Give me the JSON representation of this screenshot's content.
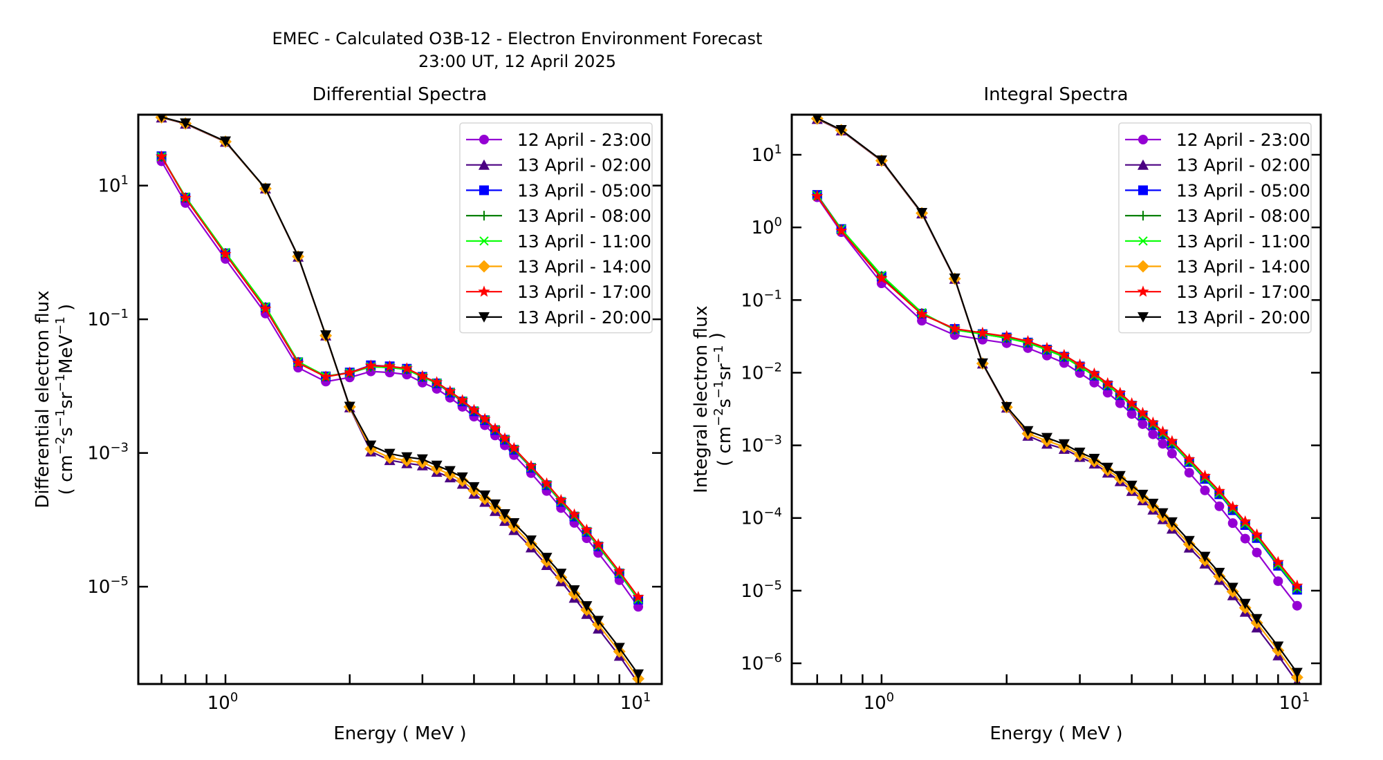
{
  "figure": {
    "title_line1": "EMEC - Calculated O3B-12 - Electron Environment Forecast",
    "title_line2": "23:00 UT, 12 April 2025"
  },
  "chart_data": [
    {
      "type": "line",
      "title": "Differential Spectra",
      "xlabel": "Energy ( MeV )",
      "ylabel_line1": "Differential electron flux",
      "ylabel_line2_parts": [
        "( cm",
        "−2",
        "s",
        "−1",
        "sr",
        "−1",
        "MeV",
        "−1",
        " )"
      ],
      "xscale": "log",
      "yscale": "log",
      "xlim": [
        0.615,
        11.4
      ],
      "ylim": [
        3.5e-07,
        115
      ],
      "xticks": [
        {
          "value": 1,
          "base": "10",
          "exp": "0"
        },
        {
          "value": 10,
          "base": "10",
          "exp": "1"
        }
      ],
      "yticks": [
        {
          "value": 10,
          "base": "10",
          "exp": "1"
        },
        {
          "value": 0.1,
          "base": "10",
          "exp": "−1"
        },
        {
          "value": 0.001,
          "base": "10",
          "exp": "−3"
        },
        {
          "value": 1e-05,
          "base": "10",
          "exp": "−5"
        }
      ],
      "legend_position": "upper-right",
      "grid": false,
      "x": [
        0.7,
        0.8,
        1.0,
        1.25,
        1.5,
        1.75,
        2.0,
        2.25,
        2.5,
        2.75,
        3.0,
        3.25,
        3.5,
        3.75,
        4.0,
        4.25,
        4.5,
        4.75,
        5.0,
        5.5,
        6.0,
        6.5,
        7.0,
        7.5,
        8.0,
        9.0,
        10.0
      ],
      "series": [
        {
          "name": "12 April - 23:00",
          "color": "#9400d3",
          "marker": "circle",
          "values": [
            23.1,
            5.5,
            0.8,
            0.122,
            0.0189,
            0.0117,
            0.0135,
            0.0166,
            0.016,
            0.0149,
            0.0113,
            0.0091,
            0.0067,
            0.0049,
            0.0035,
            0.0026,
            0.00183,
            0.0013,
            0.00093,
            0.0005,
            0.00027,
            0.00015,
            9e-05,
            5.3e-05,
            3.2e-05,
            1.25e-05,
            5e-06
          ]
        },
        {
          "name": "13 April - 02:00",
          "color": "#4b0082",
          "marker": "triangle-up",
          "values": [
            104,
            84,
            45,
            9.0,
            0.86,
            0.057,
            0.0048,
            0.00105,
            0.00078,
            0.0007,
            0.00065,
            0.00052,
            0.00043,
            0.000345,
            0.000245,
            0.000185,
            0.000135,
            9.6e-05,
            7e-05,
            3.85e-05,
            2.1e-05,
            1.2e-05,
            6.8e-06,
            3.9e-06,
            2.35e-06,
            9.2e-07,
            3.6e-07
          ]
        },
        {
          "name": "13 April - 05:00",
          "color": "#0000ff",
          "marker": "square",
          "values": [
            27.5,
            6.6,
            0.97,
            0.15,
            0.0228,
            0.014,
            0.016,
            0.0205,
            0.0198,
            0.0182,
            0.0138,
            0.011,
            0.008,
            0.0059,
            0.0042,
            0.0031,
            0.0022,
            0.00158,
            0.00112,
            0.0006,
            0.00033,
            0.000185,
            0.000112,
            6.6e-05,
            4e-05,
            1.58e-05,
            6.4e-06
          ]
        },
        {
          "name": "13 April - 08:00",
          "color": "#008000",
          "marker": "plus",
          "values": [
            27.0,
            6.6,
            0.98,
            0.152,
            0.023,
            0.014,
            0.0158,
            0.0195,
            0.019,
            0.0178,
            0.0137,
            0.0111,
            0.0081,
            0.006,
            0.0043,
            0.00315,
            0.00225,
            0.0016,
            0.00114,
            0.00061,
            0.000335,
            0.000188,
            0.000114,
            6.7e-05,
            4.05e-05,
            1.6e-05,
            6.5e-06
          ]
        },
        {
          "name": "13 April - 11:00",
          "color": "#00ff00",
          "marker": "x",
          "values": [
            27.0,
            6.8,
            1.0,
            0.155,
            0.0232,
            0.0141,
            0.0158,
            0.0195,
            0.019,
            0.0178,
            0.0137,
            0.0111,
            0.0081,
            0.006,
            0.0043,
            0.00315,
            0.00225,
            0.0016,
            0.00114,
            0.00061,
            0.000335,
            0.000188,
            0.000114,
            6.7e-05,
            4.05e-05,
            1.6e-05,
            6.5e-06
          ]
        },
        {
          "name": "13 April - 14:00",
          "color": "#ffa500",
          "marker": "diamond",
          "values": [
            105,
            85,
            45.5,
            9.0,
            0.87,
            0.057,
            0.0049,
            0.00115,
            0.00085,
            0.00077,
            0.00072,
            0.00058,
            0.00048,
            0.000385,
            0.000275,
            0.000207,
            0.000152,
            0.000108,
            7.9e-05,
            4.35e-05,
            2.4e-05,
            1.38e-05,
            7.8e-06,
            4.5e-06,
            2.72e-06,
            1.07e-06,
            4.2e-07
          ]
        },
        {
          "name": "13 April - 17:00",
          "color": "#ff0000",
          "marker": "star",
          "values": [
            27.2,
            6.5,
            0.94,
            0.143,
            0.0222,
            0.0138,
            0.0159,
            0.0202,
            0.0197,
            0.0184,
            0.0141,
            0.0114,
            0.00836,
            0.00614,
            0.00439,
            0.00322,
            0.00231,
            0.00165,
            0.00118,
            0.000635,
            0.00035,
            0.000197,
            0.00012,
            7.08e-05,
            4.29e-05,
            1.69e-05,
            7e-06
          ]
        },
        {
          "name": "13 April - 20:00",
          "color": "#000000",
          "marker": "triangle-down",
          "values": [
            106,
            85.7,
            46.0,
            9.1,
            0.877,
            0.0578,
            0.00494,
            0.0013,
            0.000977,
            0.000867,
            0.000807,
            0.00065,
            0.000538,
            0.000434,
            0.00031,
            0.000233,
            0.000171,
            0.000122,
            8.97e-05,
            4.94e-05,
            2.72e-05,
            1.57e-05,
            8.87e-06,
            5.13e-06,
            3.1e-06,
            1.22e-06,
            4.9e-07
          ]
        }
      ]
    },
    {
      "type": "line",
      "title": "Integral Spectra",
      "xlabel": "Energy ( MeV )",
      "ylabel_line1": "Integral electron flux",
      "ylabel_line2_parts": [
        "( cm",
        "−2",
        "s",
        "−1",
        "sr",
        "−1",
        "",
        "",
        " )"
      ],
      "xscale": "log",
      "yscale": "log",
      "xlim": [
        0.608,
        11.4
      ],
      "ylim": [
        5.19e-07,
        35.6
      ],
      "xticks": [
        {
          "value": 1,
          "base": "10",
          "exp": "0"
        },
        {
          "value": 10,
          "base": "10",
          "exp": "1"
        }
      ],
      "yticks": [
        {
          "value": 10,
          "base": "10",
          "exp": "1"
        },
        {
          "value": 1,
          "base": "10",
          "exp": "0"
        },
        {
          "value": 0.1,
          "base": "10",
          "exp": "−1"
        },
        {
          "value": 0.01,
          "base": "10",
          "exp": "−2"
        },
        {
          "value": 0.001,
          "base": "10",
          "exp": "−3"
        },
        {
          "value": 0.0001,
          "base": "10",
          "exp": "−4"
        },
        {
          "value": 1e-05,
          "base": "10",
          "exp": "−5"
        },
        {
          "value": 1e-06,
          "base": "10",
          "exp": "−6"
        }
      ],
      "legend_position": "upper-right",
      "grid": false,
      "x": [
        0.7,
        0.8,
        1.0,
        1.25,
        1.5,
        1.75,
        2.0,
        2.25,
        2.5,
        2.75,
        3.0,
        3.25,
        3.5,
        3.75,
        4.0,
        4.25,
        4.5,
        4.75,
        5.0,
        5.5,
        6.0,
        6.5,
        7.0,
        7.5,
        8.0,
        9.0,
        10.0
      ],
      "series": [
        {
          "name": "12 April - 23:00",
          "color": "#9400d3",
          "marker": "circle",
          "values": [
            2.6,
            0.86,
            0.17,
            0.052,
            0.033,
            0.0285,
            0.0255,
            0.0218,
            0.0172,
            0.0136,
            0.0099,
            0.0073,
            0.0053,
            0.0038,
            0.0027,
            0.00196,
            0.00142,
            0.00105,
            0.00077,
            0.00042,
            0.00024,
            0.000145,
            8.5e-05,
            5.2e-05,
            3.35e-05,
            1.35e-05,
            6.2e-06
          ]
        },
        {
          "name": "13 April - 02:00",
          "color": "#4b0082",
          "marker": "triangle-up",
          "values": [
            31,
            21.5,
            8.2,
            1.55,
            0.195,
            0.0133,
            0.0033,
            0.00135,
            0.00105,
            0.00089,
            0.00069,
            0.00056,
            0.00042,
            0.00032,
            0.000235,
            0.000175,
            0.00013,
            9.6e-05,
            7.1e-05,
            3.9e-05,
            2.35e-05,
            1.4e-05,
            8.6e-06,
            5.1e-06,
            3.1e-06,
            1.28e-06,
            5.5e-07
          ]
        },
        {
          "name": "13 April - 05:00",
          "color": "#0000ff",
          "marker": "square",
          "values": [
            2.8,
            0.95,
            0.21,
            0.065,
            0.04,
            0.034,
            0.0305,
            0.026,
            0.0208,
            0.0166,
            0.0122,
            0.0091,
            0.0067,
            0.0049,
            0.00352,
            0.00259,
            0.0019,
            0.00142,
            0.00105,
            0.00059,
            0.000345,
            0.000212,
            0.000128,
            8e-05,
            5.3e-05,
            2.2e-05,
            1.03e-05
          ]
        },
        {
          "name": "13 April - 08:00",
          "color": "#008000",
          "marker": "plus",
          "values": [
            2.75,
            0.94,
            0.215,
            0.066,
            0.039,
            0.034,
            0.03,
            0.0258,
            0.0206,
            0.0165,
            0.0121,
            0.0091,
            0.0067,
            0.0049,
            0.00355,
            0.00262,
            0.00193,
            0.00144,
            0.00107,
            0.0006,
            0.000355,
            0.000219,
            0.000133,
            8.35e-05,
            5.5e-05,
            2.3e-05,
            1.08e-05
          ]
        },
        {
          "name": "13 April - 11:00",
          "color": "#00ff00",
          "marker": "x",
          "values": [
            2.75,
            0.95,
            0.22,
            0.067,
            0.039,
            0.034,
            0.03,
            0.0258,
            0.0206,
            0.0165,
            0.0121,
            0.0091,
            0.0067,
            0.0049,
            0.00355,
            0.00262,
            0.00193,
            0.00144,
            0.00107,
            0.0006,
            0.000355,
            0.000219,
            0.000133,
            8.35e-05,
            5.5e-05,
            2.3e-05,
            1.08e-05
          ]
        },
        {
          "name": "13 April - 14:00",
          "color": "#ffa500",
          "marker": "diamond",
          "values": [
            31.5,
            21.8,
            8.3,
            1.57,
            0.197,
            0.0134,
            0.00335,
            0.00145,
            0.00115,
            0.00096,
            0.00074,
            0.000605,
            0.000455,
            0.00035,
            0.000255,
            0.00019,
            0.000143,
            0.000105,
            7.9e-05,
            4.35e-05,
            2.62e-05,
            1.57e-05,
            9.7e-06,
            5.8e-06,
            3.6e-06,
            1.5e-06,
            6.4e-07
          ]
        },
        {
          "name": "13 April - 17:00",
          "color": "#ff0000",
          "marker": "star",
          "values": [
            2.69,
            0.9,
            0.199,
            0.0637,
            0.0403,
            0.0353,
            0.0316,
            0.0271,
            0.0218,
            0.0175,
            0.0129,
            0.0097,
            0.00714,
            0.00526,
            0.00378,
            0.00279,
            0.00205,
            0.00154,
            0.00114,
            0.000643,
            0.00038,
            0.000235,
            0.000142,
            8.95e-05,
            5.91e-05,
            2.47e-05,
            1.17e-05
          ]
        },
        {
          "name": "13 April - 20:00",
          "color": "#000000",
          "marker": "triangle-down",
          "values": [
            31.9,
            22.0,
            8.4,
            1.59,
            0.199,
            0.0135,
            0.00339,
            0.00158,
            0.00127,
            0.00104,
            0.000799,
            0.000656,
            0.000494,
            0.00038,
            0.00028,
            0.00021,
            0.000158,
            0.000117,
            8.77e-05,
            4.85e-05,
            2.94e-05,
            1.77e-05,
            1.1e-05,
            6.62e-06,
            4.09e-06,
            1.71e-06,
            7.43e-07
          ]
        }
      ]
    }
  ]
}
